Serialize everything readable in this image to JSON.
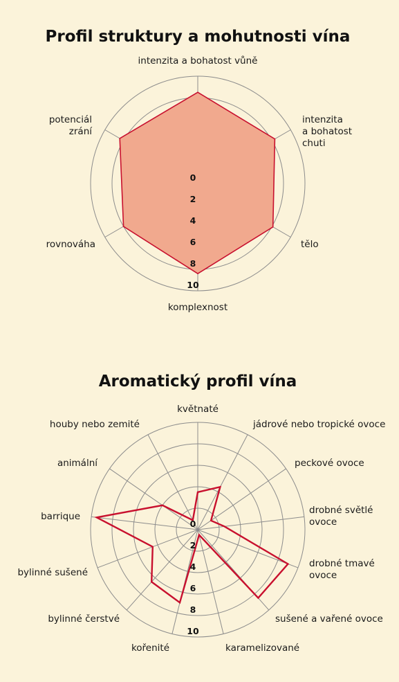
{
  "colors": {
    "background": "#fbf3da",
    "grid": "#8c8c8c",
    "series_line": "#c8102e",
    "series_fill": "#f1a98e"
  },
  "chart_data": [
    {
      "type": "radar",
      "title": "Profil struktury a mohutnosti vína",
      "axes": [
        "intenzita a bohatost vůně",
        "intenzita a bohatost chuti",
        "tělo",
        "komplexnost",
        "rovnováha",
        "potenciál zrání"
      ],
      "axis_label_lines": [
        [
          "intenzita a bohatost vůně"
        ],
        [
          "intenzita",
          "a bohatost",
          "chuti"
        ],
        [
          "tělo"
        ],
        [
          "komplexnost"
        ],
        [
          "rovnováha"
        ],
        [
          "potenciál",
          "zrání"
        ]
      ],
      "ticks": [
        "0",
        "2",
        "4",
        "6",
        "8",
        "10"
      ],
      "range": [
        0,
        10
      ],
      "filled": true,
      "series": [
        {
          "values": [
            8.5,
            8.3,
            8.1,
            8.4,
            8.0,
            8.4
          ]
        }
      ]
    },
    {
      "type": "radar",
      "title": "Aromatický profil vína",
      "axes": [
        "květnaté",
        "jádrové nebo tropické ovoce",
        "peckové ovoce",
        "drobné světlé ovoce",
        "drobné tmavé ovoce",
        "sušené a vařené ovoce",
        "karamelizované",
        "kořenité",
        "bylinné čerstvé",
        "bylinné sušené",
        "barrique",
        "animální",
        "houby nebo zemité"
      ],
      "axis_label_lines": [
        [
          "květnaté"
        ],
        [
          "jádrové nebo tropické ovoce"
        ],
        [
          "peckové ovoce"
        ],
        [
          "drobné světlé",
          "ovoce"
        ],
        [
          "drobné tmavé",
          "ovoce"
        ],
        [
          "sušené a vařené ovoce"
        ],
        [
          "karamelizované"
        ],
        [
          "kořenité"
        ],
        [
          "bylinné čerstvé"
        ],
        [
          "bylinné sušené"
        ],
        [
          "barrique"
        ],
        [
          "animální"
        ],
        [
          "houby nebo zemité"
        ]
      ],
      "ticks": [
        "0",
        "2",
        "4",
        "6",
        "8",
        "10"
      ],
      "range": [
        0,
        10
      ],
      "filled": false,
      "series": [
        {
          "values": [
            3.5,
            4.5,
            1.5,
            2.5,
            9.0,
            8.5,
            0.5,
            7.0,
            6.5,
            4.5,
            9.5,
            4.0,
            1.0
          ]
        }
      ]
    }
  ]
}
